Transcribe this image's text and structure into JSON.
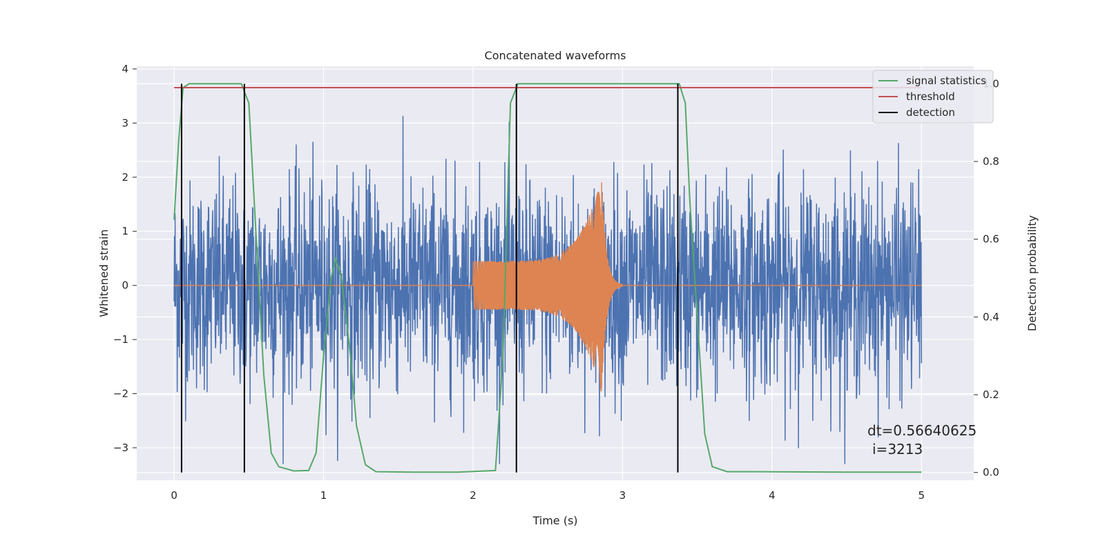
{
  "chart_data": {
    "type": "line",
    "title": "Concatenated waveforms",
    "xlabel": "Time (s)",
    "ylabel_left": "Whitened strain",
    "ylabel_right": "Detection probability",
    "xlim": [
      -0.25,
      5.35
    ],
    "ylim_left": [
      -3.6,
      4.05
    ],
    "ylim_right": [
      -0.02,
      1.045
    ],
    "x_ticks": [
      "0",
      "1",
      "2",
      "3",
      "4",
      "5"
    ],
    "y_ticks_left": [
      "4",
      "3",
      "2",
      "1",
      "0",
      "−1",
      "−2",
      "−3"
    ],
    "y_ticks_right": [
      "1.0",
      "0.8",
      "0.6",
      "0.4",
      "0.2",
      "0.0"
    ],
    "grid": true,
    "legend_position": "top-right",
    "series": [
      {
        "name": "",
        "axis": "left",
        "color": "#4c72b0",
        "kind": "noise",
        "x_range": [
          0,
          5
        ],
        "peak_envelope_typical": 2.2,
        "extremes": {
          "max": 3.3,
          "min": -3.3
        }
      },
      {
        "name": "",
        "axis": "left",
        "color": "#dd8452",
        "kind": "chirp",
        "baseline": 0,
        "onset_time": 2.0,
        "onset_amplitude": 0.45,
        "peak_time": 2.86,
        "peak_value": 2.0,
        "trough_value": -1.6,
        "ringdown_end": 3.0
      },
      {
        "name": "signal statistics",
        "axis": "right",
        "color": "#55a868",
        "x": [
          0.0,
          0.03,
          0.06,
          0.1,
          0.15,
          0.3,
          0.45,
          0.5,
          0.55,
          0.6,
          0.65,
          0.7,
          0.8,
          0.9,
          0.95,
          1.0,
          1.05,
          1.08,
          1.12,
          1.18,
          1.22,
          1.28,
          1.35,
          1.6,
          1.9,
          2.15,
          2.2,
          2.25,
          2.3,
          2.35,
          2.45,
          2.8,
          3.2,
          3.38,
          3.42,
          3.45,
          3.5,
          3.55,
          3.6,
          3.7,
          3.9,
          4.5,
          5.0
        ],
        "values": [
          0.65,
          0.85,
          0.99,
          1.0,
          1.0,
          1.0,
          1.0,
          0.95,
          0.6,
          0.25,
          0.05,
          0.015,
          0.004,
          0.005,
          0.05,
          0.3,
          0.5,
          0.55,
          0.5,
          0.3,
          0.12,
          0.02,
          0.002,
          0.001,
          0.001,
          0.005,
          0.3,
          0.95,
          1.0,
          1.0,
          1.0,
          1.0,
          1.0,
          1.0,
          0.95,
          0.7,
          0.4,
          0.1,
          0.015,
          0.002,
          0.002,
          0.001,
          0.001
        ]
      },
      {
        "name": "threshold",
        "axis": "right",
        "color": "#c44e52",
        "x": [
          0,
          5
        ],
        "values": [
          0.99,
          0.99
        ]
      },
      {
        "name": "detection",
        "axis": "right",
        "color": "#000000",
        "kind": "vlines",
        "x": [
          0.05,
          0.47,
          2.29,
          3.37
        ],
        "ymin": 0.0,
        "ymax": 1.0
      }
    ],
    "legend": [
      "signal statistics",
      "threshold",
      "detection"
    ],
    "annotations": [
      "dt=0.56640625",
      "i=3213"
    ]
  }
}
